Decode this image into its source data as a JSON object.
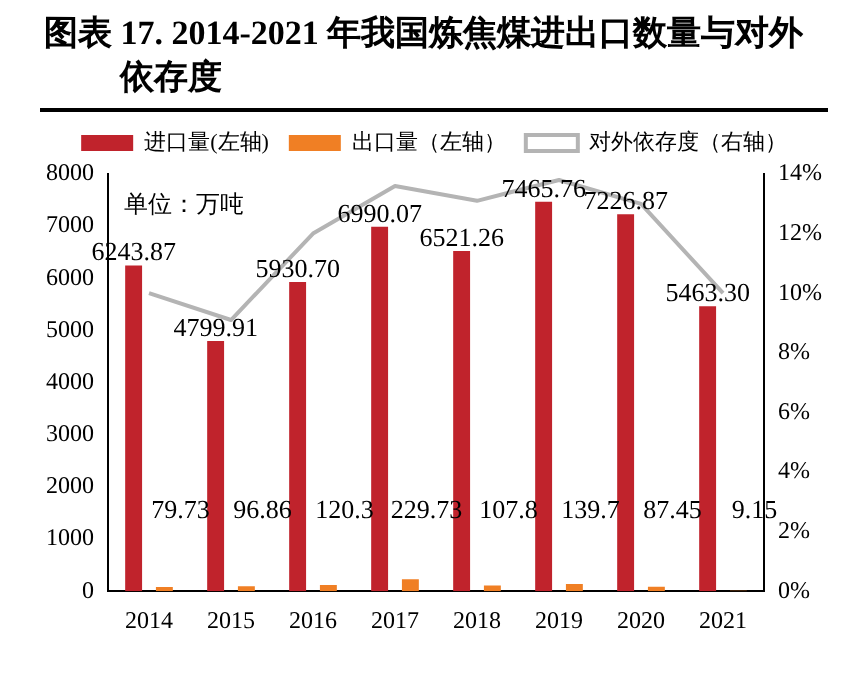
{
  "chart_data": {
    "type": "bar",
    "title": "图表 17. 2014-2021 年我国炼焦煤进出口数量与对外依存度",
    "categories": [
      "2014",
      "2015",
      "2016",
      "2017",
      "2018",
      "2019",
      "2020",
      "2021"
    ],
    "series": [
      {
        "name": "进口量(左轴)",
        "color": "#c0232c",
        "values": [
          6243.87,
          4799.91,
          5930.7,
          6990.07,
          6521.26,
          7465.76,
          7226.87,
          5463.3
        ],
        "value_labels": [
          "6243.87",
          "4799.91",
          "5930.70",
          "6990.07",
          "6521.26",
          "7465.76",
          "7226.87",
          "5463.30"
        ]
      },
      {
        "name": "出口量（左轴）",
        "color": "#f07f24",
        "values": [
          79.73,
          96.86,
          120.3,
          229.73,
          107.8,
          139.7,
          87.45,
          9.15
        ],
        "value_labels": [
          "79.73",
          "96.86",
          "120.3",
          "229.73",
          "107.8",
          "139.7",
          "87.45",
          "9.15"
        ]
      },
      {
        "name": "对外依存度（右轴）",
        "type": "line",
        "axis": "y2",
        "color": "#b4b4b4",
        "values": [
          10.0,
          9.1,
          12.0,
          13.6,
          13.1,
          13.8,
          13.0,
          10.0
        ]
      }
    ],
    "ylim": [
      0,
      8000
    ],
    "yticks": [
      0,
      1000,
      2000,
      3000,
      4000,
      5000,
      6000,
      7000,
      8000
    ],
    "y2lim": [
      0,
      14
    ],
    "y2ticks": [
      {
        "value": 0,
        "label": "0%"
      },
      {
        "value": 2,
        "label": "2%"
      },
      {
        "value": 4,
        "label": "4%"
      },
      {
        "value": 6,
        "label": "6%"
      },
      {
        "value": 8,
        "label": "8%"
      },
      {
        "value": 10,
        "label": "10%"
      },
      {
        "value": 12,
        "label": "12%"
      },
      {
        "value": 14,
        "label": "14%"
      }
    ],
    "annotations": [
      "单位：万吨"
    ],
    "legend": "top",
    "grid": false,
    "marker": "none"
  }
}
